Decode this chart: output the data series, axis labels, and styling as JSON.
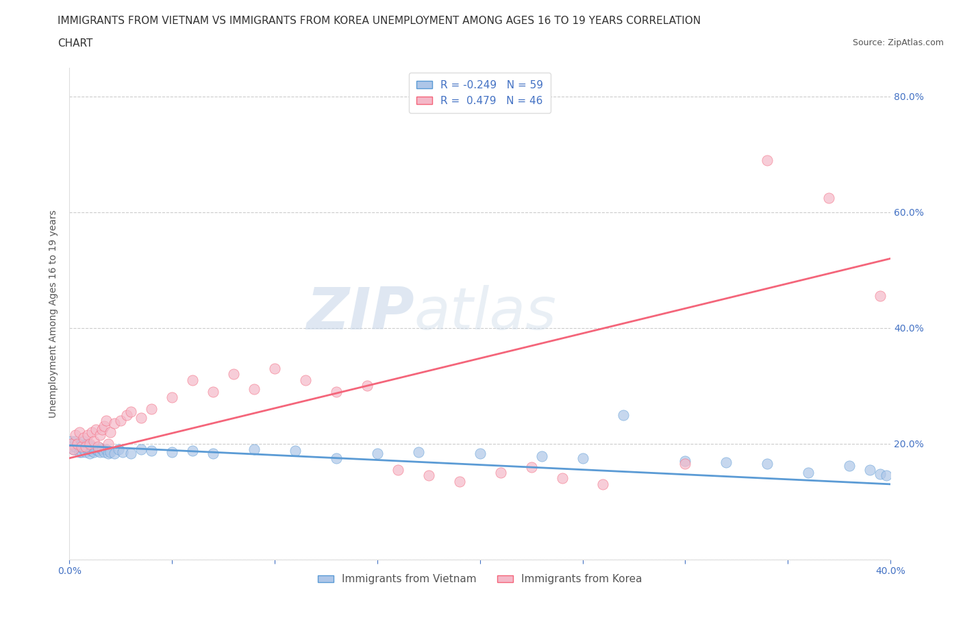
{
  "title_line1": "IMMIGRANTS FROM VIETNAM VS IMMIGRANTS FROM KOREA UNEMPLOYMENT AMONG AGES 16 TO 19 YEARS CORRELATION",
  "title_line2": "CHART",
  "source_text": "Source: ZipAtlas.com",
  "ylabel": "Unemployment Among Ages 16 to 19 years",
  "watermark_zip": "ZIP",
  "watermark_atlas": "atlas",
  "xlim": [
    0.0,
    0.4
  ],
  "ylim": [
    0.0,
    0.85
  ],
  "x_ticks": [
    0.0,
    0.05,
    0.1,
    0.15,
    0.2,
    0.25,
    0.3,
    0.35,
    0.4
  ],
  "y_ticks": [
    0.0,
    0.2,
    0.4,
    0.6,
    0.8
  ],
  "grid_color": "#cccccc",
  "background_color": "#ffffff",
  "vietnam_color": "#aec6e8",
  "korea_color": "#f4b8c8",
  "vietnam_line_color": "#5b9bd5",
  "korea_line_color": "#f4657a",
  "legend_label_vietnam": "Immigrants from Vietnam",
  "legend_label_korea": "Immigrants from Korea",
  "vietnam_scatter_x": [
    0.001,
    0.001,
    0.002,
    0.003,
    0.003,
    0.004,
    0.005,
    0.005,
    0.006,
    0.006,
    0.007,
    0.007,
    0.007,
    0.008,
    0.008,
    0.009,
    0.009,
    0.01,
    0.01,
    0.01,
    0.011,
    0.011,
    0.012,
    0.012,
    0.013,
    0.014,
    0.015,
    0.015,
    0.016,
    0.017,
    0.018,
    0.019,
    0.02,
    0.022,
    0.024,
    0.026,
    0.03,
    0.035,
    0.04,
    0.05,
    0.06,
    0.07,
    0.09,
    0.11,
    0.13,
    0.15,
    0.17,
    0.2,
    0.23,
    0.25,
    0.27,
    0.3,
    0.32,
    0.34,
    0.36,
    0.38,
    0.39,
    0.395,
    0.398
  ],
  "vietnam_scatter_y": [
    0.195,
    0.205,
    0.19,
    0.195,
    0.205,
    0.2,
    0.185,
    0.195,
    0.185,
    0.2,
    0.19,
    0.195,
    0.205,
    0.185,
    0.198,
    0.19,
    0.2,
    0.183,
    0.19,
    0.197,
    0.188,
    0.195,
    0.185,
    0.193,
    0.19,
    0.188,
    0.185,
    0.193,
    0.19,
    0.185,
    0.19,
    0.183,
    0.185,
    0.183,
    0.19,
    0.185,
    0.183,
    0.19,
    0.188,
    0.185,
    0.188,
    0.183,
    0.19,
    0.188,
    0.175,
    0.183,
    0.185,
    0.183,
    0.178,
    0.175,
    0.25,
    0.17,
    0.168,
    0.165,
    0.15,
    0.162,
    0.155,
    0.148,
    0.145
  ],
  "korea_scatter_x": [
    0.001,
    0.002,
    0.003,
    0.004,
    0.005,
    0.006,
    0.007,
    0.008,
    0.009,
    0.01,
    0.011,
    0.012,
    0.013,
    0.014,
    0.015,
    0.016,
    0.017,
    0.018,
    0.019,
    0.02,
    0.022,
    0.025,
    0.028,
    0.03,
    0.035,
    0.04,
    0.05,
    0.06,
    0.07,
    0.08,
    0.09,
    0.1,
    0.115,
    0.13,
    0.145,
    0.16,
    0.175,
    0.19,
    0.21,
    0.225,
    0.24,
    0.26,
    0.3,
    0.34,
    0.37,
    0.395
  ],
  "korea_scatter_y": [
    0.2,
    0.19,
    0.215,
    0.2,
    0.22,
    0.195,
    0.21,
    0.195,
    0.215,
    0.2,
    0.22,
    0.205,
    0.225,
    0.195,
    0.215,
    0.225,
    0.23,
    0.24,
    0.2,
    0.22,
    0.235,
    0.24,
    0.25,
    0.255,
    0.245,
    0.26,
    0.28,
    0.31,
    0.29,
    0.32,
    0.295,
    0.33,
    0.31,
    0.29,
    0.3,
    0.155,
    0.145,
    0.135,
    0.15,
    0.16,
    0.14,
    0.13,
    0.165,
    0.69,
    0.625,
    0.455
  ],
  "vietnam_trend_x": [
    0.0,
    0.4
  ],
  "vietnam_trend_y": [
    0.197,
    0.13
  ],
  "korea_trend_x": [
    0.0,
    0.4
  ],
  "korea_trend_y": [
    0.175,
    0.52
  ],
  "title_fontsize": 11,
  "axis_label_fontsize": 10,
  "tick_fontsize": 10,
  "legend_fontsize": 11,
  "source_fontsize": 9,
  "blue_text_color": "#4472c4",
  "dark_text_color": "#333333",
  "mid_text_color": "#555555"
}
